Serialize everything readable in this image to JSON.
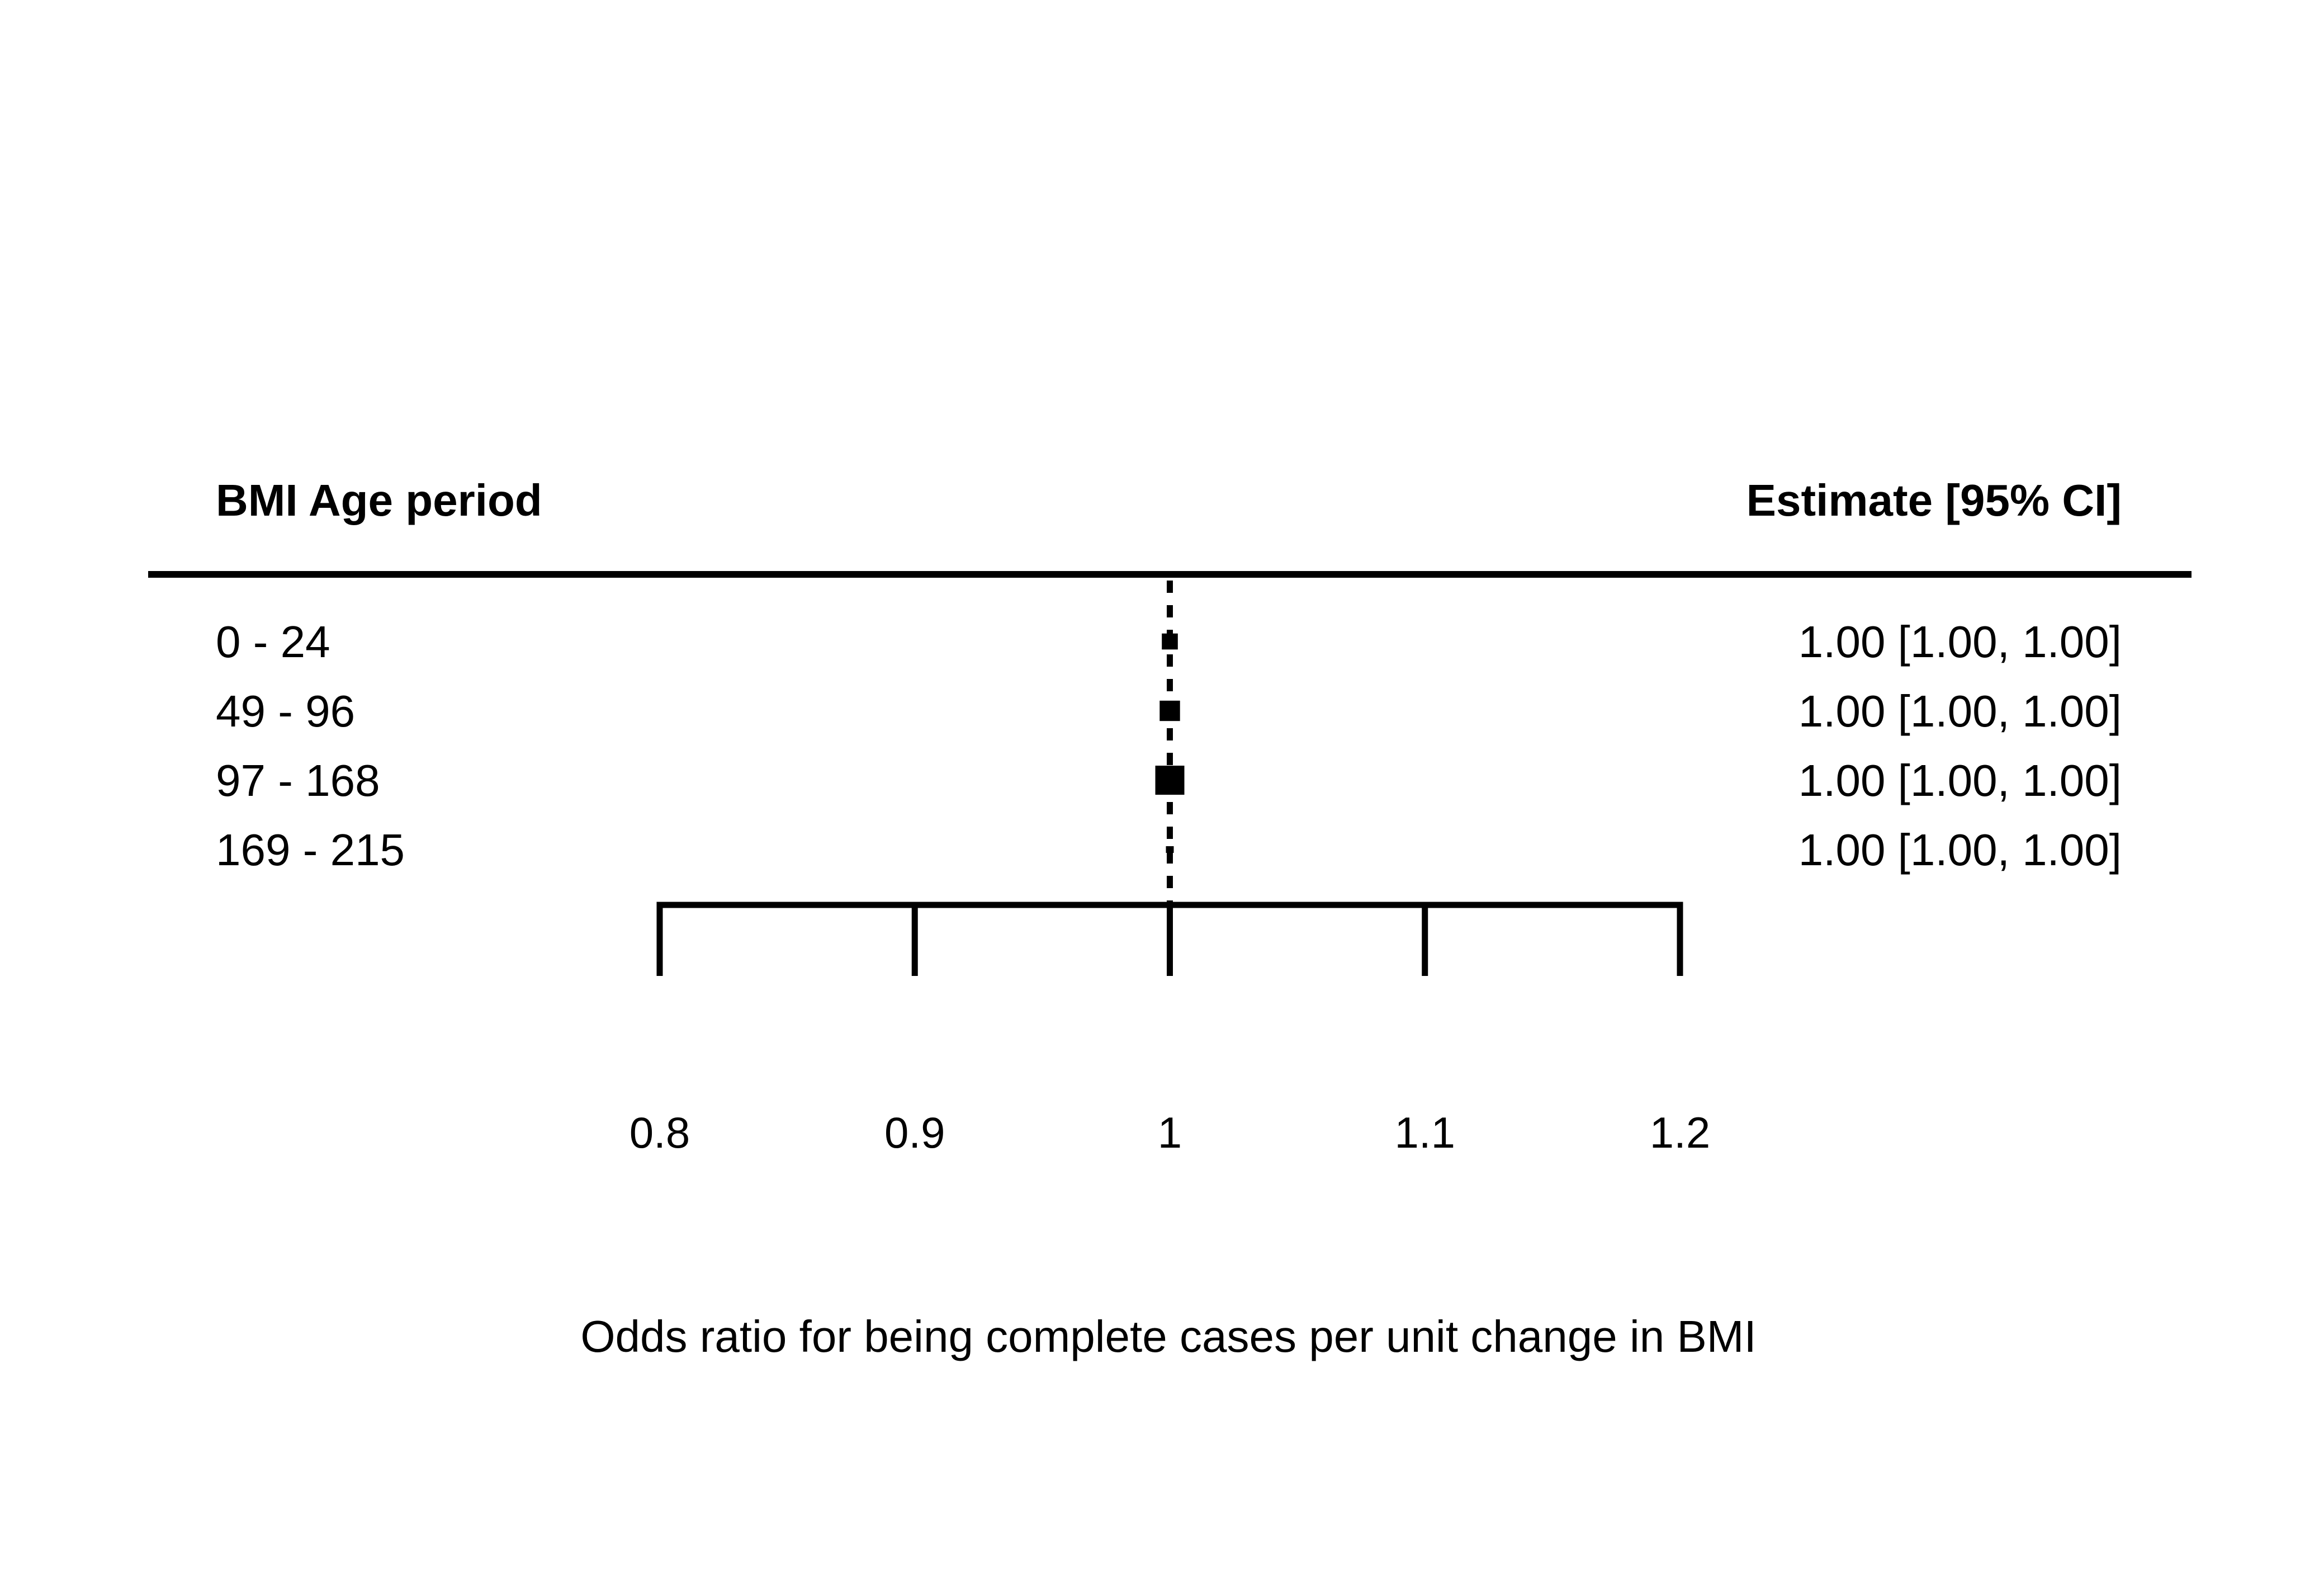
{
  "chart_data": {
    "type": "forest",
    "headers": {
      "left": "BMI Age period",
      "right": "Estimate [95% CI]"
    },
    "rows": [
      {
        "label": "0 - 24",
        "estimate": 1.0,
        "ci_low": 1.0,
        "ci_high": 1.0,
        "weight": 0.55,
        "text": "1.00 [1.00, 1.00]"
      },
      {
        "label": "49 - 96",
        "estimate": 1.0,
        "ci_low": 1.0,
        "ci_high": 1.0,
        "weight": 0.7,
        "text": "1.00 [1.00, 1.00]"
      },
      {
        "label": "97 - 168",
        "estimate": 1.0,
        "ci_low": 1.0,
        "ci_high": 1.0,
        "weight": 1.0,
        "text": "1.00 [1.00, 1.00]"
      },
      {
        "label": "169 - 215",
        "estimate": 1.0,
        "ci_low": 1.0,
        "ci_high": 1.0,
        "weight": 0.2,
        "text": "1.00 [1.00, 1.00]"
      }
    ],
    "reference_line": 1,
    "xlim": [
      0.8,
      1.2
    ],
    "xticks": [
      0.8,
      0.9,
      1,
      1.1,
      1.2
    ],
    "xtick_labels": [
      "0.8",
      "0.9",
      "1",
      "1.1",
      "1.2"
    ],
    "xlabel": "Odds ratio for being complete cases per unit change in BMI",
    "colors": {
      "ink": "#000000",
      "background": "#ffffff"
    }
  }
}
